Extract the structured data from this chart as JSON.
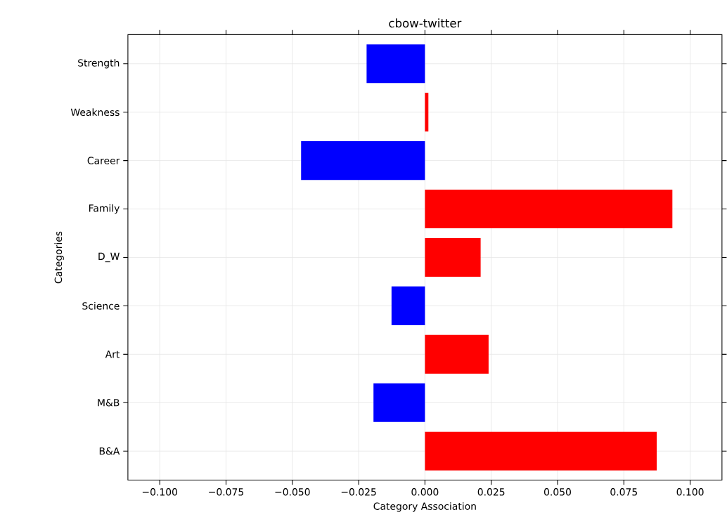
{
  "chart_data": {
    "type": "bar",
    "orientation": "horizontal",
    "title": "cbow-twitter",
    "xlabel": "Category Association",
    "ylabel": "Categories",
    "categories": [
      "Strength",
      "Weakness",
      "Career",
      "Family",
      "D_W",
      "Science",
      "Art",
      "M&B",
      "B&A"
    ],
    "values": [
      -0.022,
      0.0013,
      -0.0467,
      0.0933,
      0.021,
      -0.0126,
      0.024,
      -0.0194,
      0.0874
    ],
    "colors": [
      "#0000ff",
      "#ff0000",
      "#0000ff",
      "#ff0000",
      "#ff0000",
      "#0000ff",
      "#ff0000",
      "#0000ff",
      "#ff0000"
    ],
    "xlim": [
      -0.112,
      0.112
    ],
    "xticks": [
      {
        "value": -0.1,
        "label": "−0.100"
      },
      {
        "value": -0.075,
        "label": "−0.075"
      },
      {
        "value": -0.05,
        "label": "−0.050"
      },
      {
        "value": -0.025,
        "label": "−0.025"
      },
      {
        "value": 0,
        "label": "0.000"
      },
      {
        "value": 0.025,
        "label": "0.025"
      },
      {
        "value": 0.05,
        "label": "0.050"
      },
      {
        "value": 0.075,
        "label": "0.075"
      },
      {
        "value": 0.1,
        "label": "0.100"
      }
    ],
    "grid": true
  }
}
